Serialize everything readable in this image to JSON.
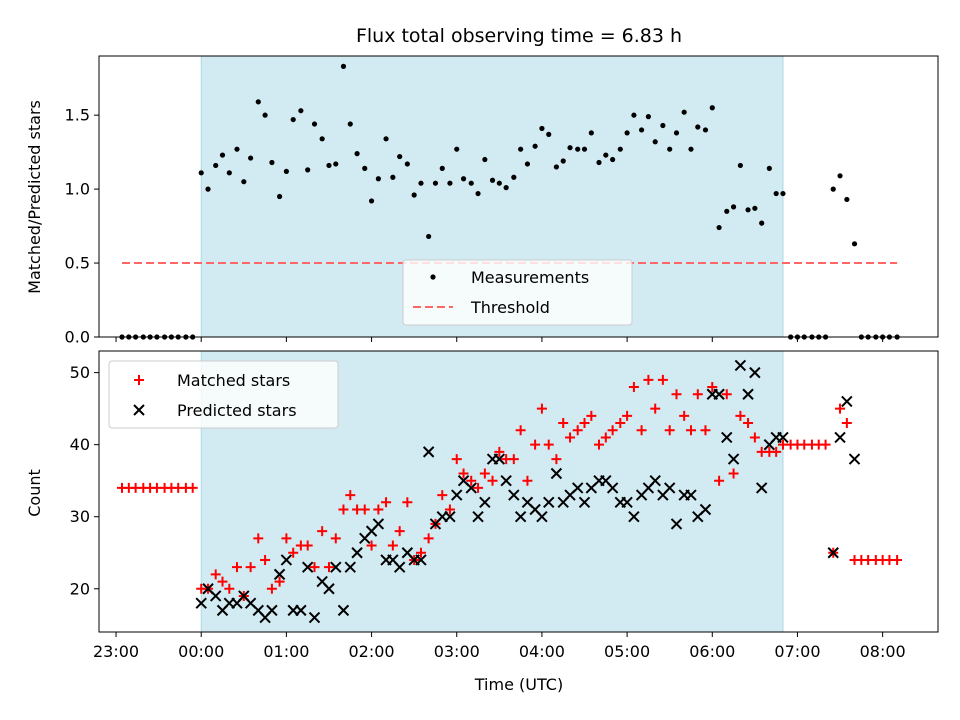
{
  "chart_data": {
    "title": "Flux total observing time = 6.83 h",
    "xlabel": "Time (UTC)",
    "x_unit": "hours since 00:00 UTC",
    "xlim": [
      -1.2,
      8.65
    ],
    "xticks": [
      {
        "value": -1,
        "label": "23:00"
      },
      {
        "value": 0,
        "label": "00:00"
      },
      {
        "value": 1,
        "label": "01:00"
      },
      {
        "value": 2,
        "label": "02:00"
      },
      {
        "value": 3,
        "label": "03:00"
      },
      {
        "value": 4,
        "label": "04:00"
      },
      {
        "value": 5,
        "label": "05:00"
      },
      {
        "value": 6,
        "label": "06:00"
      },
      {
        "value": 7,
        "label": "07:00"
      },
      {
        "value": 8,
        "label": "08:00"
      }
    ],
    "observing_window": [
      0.0,
      6.83
    ],
    "colors": {
      "shade": "#add8e6",
      "threshold": "#ff6666",
      "matched": "#ff0000",
      "predicted": "#000000"
    },
    "panels": [
      {
        "type": "scatter",
        "ylabel": "Matched/Predicted stars",
        "ylim": [
          0,
          1.9
        ],
        "yticks": [
          0.0,
          0.5,
          1.0,
          1.5
        ],
        "ytick_labels": [
          "0.0",
          "0.5",
          "1.0",
          "1.5"
        ],
        "legend_position": "bottom-center",
        "series": [
          {
            "name": "Measurements",
            "marker": "dot",
            "x": [
              -0.93,
              -0.85,
              -0.77,
              -0.68,
              -0.6,
              -0.52,
              -0.43,
              -0.35,
              -0.27,
              -0.18,
              -0.1,
              0.0,
              0.08,
              0.17,
              0.25,
              0.33,
              0.42,
              0.5,
              0.58,
              0.67,
              0.75,
              0.83,
              0.92,
              1.0,
              1.08,
              1.17,
              1.25,
              1.33,
              1.42,
              1.5,
              1.58,
              1.67,
              1.75,
              1.83,
              1.92,
              2.0,
              2.08,
              2.17,
              2.25,
              2.33,
              2.42,
              2.5,
              2.58,
              2.67,
              2.75,
              2.83,
              2.92,
              3.0,
              3.08,
              3.17,
              3.25,
              3.33,
              3.42,
              3.5,
              3.58,
              3.67,
              3.75,
              3.83,
              3.92,
              4.0,
              4.08,
              4.17,
              4.25,
              4.33,
              4.42,
              4.5,
              4.58,
              4.67,
              4.75,
              4.83,
              4.92,
              5.0,
              5.08,
              5.17,
              5.25,
              5.33,
              5.42,
              5.5,
              5.58,
              5.67,
              5.75,
              5.83,
              5.92,
              6.0,
              6.08,
              6.17,
              6.25,
              6.33,
              6.42,
              6.5,
              6.58,
              6.67,
              6.75,
              6.83,
              6.92,
              7.0,
              7.08,
              7.17,
              7.25,
              7.33,
              7.42,
              7.5,
              7.58,
              7.67,
              7.75,
              7.83,
              7.92,
              8.0,
              8.08,
              8.17
            ],
            "y": [
              0,
              0,
              0,
              0,
              0,
              0,
              0,
              0,
              0,
              0,
              0,
              1.11,
              1.0,
              1.16,
              1.23,
              1.11,
              1.27,
              1.05,
              1.21,
              1.59,
              1.5,
              1.18,
              0.95,
              1.12,
              1.47,
              1.53,
              1.13,
              1.44,
              1.34,
              1.16,
              1.17,
              1.83,
              1.44,
              1.24,
              1.14,
              0.92,
              1.07,
              1.34,
              1.08,
              1.22,
              1.17,
              0.96,
              1.04,
              0.68,
              1.04,
              1.14,
              1.04,
              1.27,
              1.07,
              1.04,
              0.97,
              1.2,
              1.06,
              1.04,
              1.01,
              1.08,
              1.27,
              1.17,
              1.29,
              1.41,
              1.37,
              1.15,
              1.19,
              1.28,
              1.27,
              1.27,
              1.38,
              1.18,
              1.23,
              1.2,
              1.27,
              1.38,
              1.5,
              1.4,
              1.49,
              1.32,
              1.43,
              1.27,
              1.38,
              1.52,
              1.27,
              1.42,
              1.4,
              1.55,
              0.74,
              0.85,
              0.88,
              1.16,
              0.86,
              0.87,
              0.77,
              1.14,
              0.97,
              0.97,
              0,
              0,
              0,
              0,
              0,
              0,
              1.0,
              1.09,
              0.93,
              0.63,
              0,
              0,
              0,
              0,
              0,
              0
            ]
          },
          {
            "name": "Threshold",
            "type": "line",
            "style": "dashed",
            "x": [
              -0.93,
              8.17
            ],
            "y": [
              0.5,
              0.5
            ]
          }
        ]
      },
      {
        "type": "scatter",
        "ylabel": "Count",
        "ylim": [
          14,
          53
        ],
        "yticks": [
          20,
          30,
          40,
          50
        ],
        "ytick_labels": [
          "20",
          "30",
          "40",
          "50"
        ],
        "legend_position": "top-left",
        "series": [
          {
            "name": "Matched stars",
            "marker": "plus",
            "x": [
              -0.93,
              -0.85,
              -0.77,
              -0.68,
              -0.6,
              -0.52,
              -0.43,
              -0.35,
              -0.27,
              -0.18,
              -0.1,
              0.0,
              0.08,
              0.17,
              0.25,
              0.33,
              0.42,
              0.5,
              0.58,
              0.67,
              0.75,
              0.83,
              0.92,
              1.0,
              1.08,
              1.17,
              1.25,
              1.33,
              1.42,
              1.5,
              1.58,
              1.67,
              1.75,
              1.83,
              1.92,
              2.0,
              2.08,
              2.17,
              2.25,
              2.33,
              2.42,
              2.5,
              2.58,
              2.67,
              2.75,
              2.83,
              2.92,
              3.0,
              3.08,
              3.17,
              3.25,
              3.33,
              3.42,
              3.5,
              3.58,
              3.67,
              3.75,
              3.83,
              3.92,
              4.0,
              4.08,
              4.17,
              4.25,
              4.33,
              4.42,
              4.5,
              4.58,
              4.67,
              4.75,
              4.83,
              4.92,
              5.0,
              5.08,
              5.17,
              5.25,
              5.33,
              5.42,
              5.5,
              5.58,
              5.67,
              5.75,
              5.83,
              5.92,
              6.0,
              6.08,
              6.17,
              6.25,
              6.33,
              6.42,
              6.5,
              6.58,
              6.67,
              6.75,
              6.83,
              6.92,
              7.0,
              7.08,
              7.17,
              7.25,
              7.33,
              7.42,
              7.5,
              7.58,
              7.67,
              7.75,
              7.83,
              7.92,
              8.0,
              8.08,
              8.17
            ],
            "y": [
              34,
              34,
              34,
              34,
              34,
              34,
              34,
              34,
              34,
              34,
              34,
              20,
              20,
              22,
              21,
              20,
              23,
              19,
              23,
              27,
              24,
              20,
              21,
              27,
              25,
              26,
              26,
              23,
              28,
              23,
              27,
              31,
              33,
              31,
              31,
              26,
              31,
              32,
              26,
              28,
              32,
              24,
              25,
              27,
              29,
              33,
              31,
              38,
              36,
              35,
              34,
              36,
              35,
              39,
              38,
              38,
              42,
              35,
              40,
              45,
              40,
              38,
              43,
              41,
              42,
              43,
              44,
              40,
              41,
              42,
              43,
              44,
              48,
              42,
              49,
              45,
              49,
              42,
              47,
              44,
              42,
              47,
              42,
              48,
              35,
              47,
              36,
              44,
              43,
              41,
              39,
              39,
              39,
              40,
              40,
              40,
              40,
              40,
              40,
              40,
              25,
              45,
              43,
              24,
              24,
              24,
              24,
              24,
              24,
              24
            ]
          },
          {
            "name": "Predicted stars",
            "marker": "x",
            "x": [
              0.0,
              0.08,
              0.17,
              0.25,
              0.33,
              0.42,
              0.5,
              0.58,
              0.67,
              0.75,
              0.83,
              0.92,
              1.0,
              1.08,
              1.17,
              1.25,
              1.33,
              1.42,
              1.5,
              1.58,
              1.67,
              1.75,
              1.83,
              1.92,
              2.0,
              2.08,
              2.17,
              2.25,
              2.33,
              2.42,
              2.5,
              2.58,
              2.67,
              2.75,
              2.83,
              2.92,
              3.0,
              3.08,
              3.17,
              3.25,
              3.33,
              3.42,
              3.5,
              3.58,
              3.67,
              3.75,
              3.83,
              3.92,
              4.0,
              4.08,
              4.17,
              4.25,
              4.33,
              4.42,
              4.5,
              4.58,
              4.67,
              4.75,
              4.83,
              4.92,
              5.0,
              5.08,
              5.17,
              5.25,
              5.33,
              5.42,
              5.5,
              5.58,
              5.67,
              5.75,
              5.83,
              5.92,
              6.0,
              6.08,
              6.17,
              6.25,
              6.33,
              6.42,
              6.5,
              6.58,
              6.67,
              6.75,
              6.83,
              7.42,
              7.5,
              7.58,
              7.67
            ],
            "y": [
              18,
              20,
              19,
              17,
              18,
              18,
              19,
              18,
              17,
              16,
              17,
              22,
              24,
              17,
              17,
              23,
              16,
              21,
              20,
              23,
              17,
              23,
              25,
              27,
              28,
              29,
              24,
              24,
              23,
              25,
              24,
              24,
              39,
              29,
              30,
              30,
              33,
              35,
              34,
              30,
              32,
              38,
              38,
              35,
              33,
              30,
              32,
              31,
              30,
              32,
              36,
              32,
              33,
              34,
              32,
              34,
              35,
              35,
              34,
              32,
              32,
              30,
              33,
              34,
              35,
              33,
              34,
              29,
              33,
              33,
              30,
              31,
              47,
              47,
              41,
              38,
              51,
              47,
              50,
              34,
              40,
              41,
              41,
              25,
              41,
              46,
              38
            ]
          }
        ]
      }
    ]
  }
}
